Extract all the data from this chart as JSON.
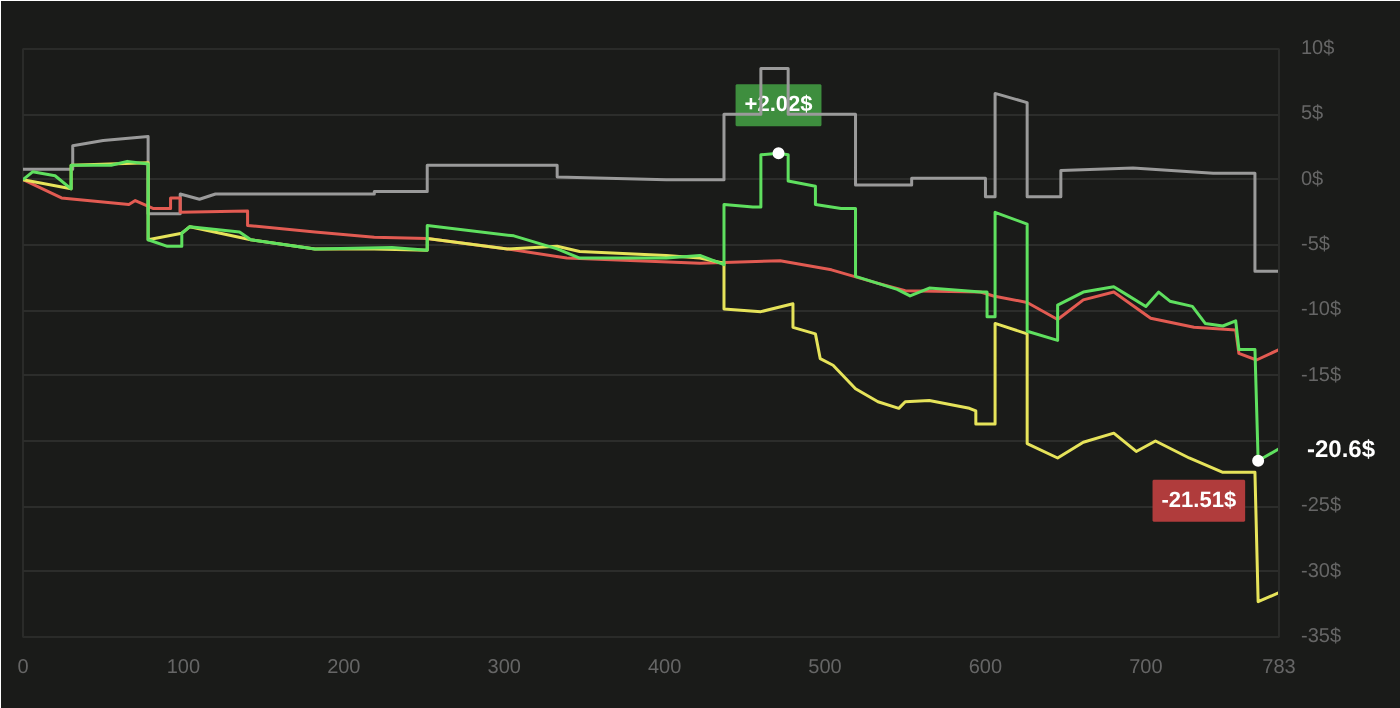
{
  "chart_data": {
    "type": "line",
    "xlim": [
      0,
      783
    ],
    "ylim": [
      -35,
      10
    ],
    "xticks": [
      0,
      100,
      200,
      300,
      400,
      500,
      600,
      700,
      783
    ],
    "yticks": [
      {
        "value": 10,
        "label": "10$"
      },
      {
        "value": 5,
        "label": "5$"
      },
      {
        "value": 0,
        "label": "0$"
      },
      {
        "value": -5,
        "label": "-5$"
      },
      {
        "value": -10,
        "label": "-10$"
      },
      {
        "value": -15,
        "label": "-15$"
      },
      {
        "value": -20,
        "label": null
      },
      {
        "value": -25,
        "label": "-25$"
      },
      {
        "value": -30,
        "label": "-30$"
      },
      {
        "value": -35,
        "label": "-35$"
      }
    ],
    "grid": "y",
    "annotations": [
      {
        "text": "+2.02$",
        "x": 471,
        "y": 2.02
      },
      {
        "text": "-21.51$",
        "x": 770,
        "y": -21.51
      },
      {
        "text": "-20.6$",
        "x": 783,
        "y": -20.6
      }
    ],
    "series": [
      {
        "color": "#9a9a9a",
        "x": [
          0,
          31,
          31,
          50,
          78,
          78,
          98,
          98,
          110,
          120,
          219,
          219,
          252,
          252,
          333,
          333,
          401,
          437,
          437,
          460,
          460,
          477,
          477,
          519,
          519,
          554,
          554,
          600,
          600,
          606,
          606,
          626,
          626,
          647,
          647,
          692,
          742,
          768,
          768,
          783
        ],
        "values": [
          0.8,
          0.8,
          2.6,
          3,
          3.3,
          -2.6,
          -2.6,
          -1.1,
          -1.5,
          -1.1,
          -1.1,
          -0.9,
          -0.9,
          1.1,
          1.1,
          0.2,
          0,
          0,
          5,
          5,
          8.5,
          8.5,
          5,
          5,
          -0.4,
          -0.4,
          0.1,
          0.1,
          -1.3,
          -1.3,
          6.6,
          5.9,
          -1.3,
          -1.3,
          0.7,
          0.9,
          0.5,
          0.5,
          -7,
          -7
        ]
      },
      {
        "color": "#e25b52",
        "x": [
          0,
          24,
          66,
          70,
          81,
          92,
          92,
          98,
          98,
          140,
          140,
          182,
          219,
          252,
          302,
          339,
          422,
          472,
          504,
          532,
          550,
          597,
          605,
          626,
          645,
          661,
          680,
          703,
          730,
          756,
          758,
          769,
          783
        ],
        "values": [
          0,
          -1.4,
          -1.9,
          -1.6,
          -2.2,
          -2.2,
          -1.4,
          -1.4,
          -2.5,
          -2.4,
          -3.5,
          -4,
          -4.4,
          -4.5,
          -5.3,
          -6,
          -6.4,
          -6.2,
          -6.9,
          -7.9,
          -8.5,
          -8.6,
          -8.9,
          -9.4,
          -10.7,
          -9.2,
          -8.6,
          -10.6,
          -11.3,
          -11.5,
          -13.3,
          -13.8,
          -13
        ]
      },
      {
        "color": "#e6e35a",
        "x": [
          0,
          30,
          30,
          78,
          78,
          99,
          104,
          142,
          182,
          219,
          252,
          252,
          302,
          333,
          347,
          401,
          422,
          437,
          437,
          460,
          480,
          480,
          494,
          497,
          505,
          519,
          533,
          546,
          550,
          565,
          590,
          594,
          594,
          606,
          606,
          626,
          626,
          645,
          661,
          680,
          694,
          706,
          727,
          748,
          768,
          770,
          783
        ],
        "values": [
          0,
          -0.7,
          1.1,
          1.3,
          -4.6,
          -4.1,
          -3.6,
          -4.6,
          -5.3,
          -5.3,
          -5.4,
          -4.5,
          -5.3,
          -5.1,
          -5.5,
          -5.8,
          -6,
          -6.4,
          -9.9,
          -10.1,
          -9.5,
          -11.3,
          -11.8,
          -13.7,
          -14.2,
          -16,
          -17,
          -17.5,
          -17,
          -16.9,
          -17.5,
          -17.7,
          -18.7,
          -18.7,
          -11,
          -11.8,
          -20.2,
          -21.3,
          -20.1,
          -19.4,
          -20.8,
          -20,
          -21.3,
          -22.4,
          -22.4,
          -32.3,
          -31.6
        ]
      },
      {
        "color": "#5fe05f",
        "x": [
          0,
          6,
          20,
          30,
          30,
          55,
          65,
          78,
          78,
          90,
          99,
          99,
          104,
          135,
          142,
          182,
          230,
          252,
          252,
          306,
          333,
          347,
          401,
          422,
          437,
          437,
          455,
          460,
          460,
          471,
          477,
          477,
          494,
          494,
          510,
          519,
          519,
          545,
          553,
          565,
          597,
          601,
          601,
          606,
          606,
          626,
          626,
          645,
          645,
          661,
          680,
          688,
          700,
          708,
          715,
          729,
          737,
          748,
          756,
          758,
          768,
          770,
          783
        ],
        "values": [
          0,
          0.6,
          0.3,
          -0.7,
          1.1,
          1.1,
          1.4,
          1.2,
          -4.6,
          -5.1,
          -5.1,
          -4.1,
          -3.6,
          -4,
          -4.6,
          -5.3,
          -5.2,
          -5.4,
          -3.5,
          -4.3,
          -5.3,
          -6,
          -6,
          -5.8,
          -6.5,
          -1.9,
          -2.1,
          -2.1,
          1.9,
          2.02,
          1.9,
          -0.1,
          -0.5,
          -1.9,
          -2.2,
          -2.2,
          -7.4,
          -8.4,
          -8.9,
          -8.3,
          -8.6,
          -8.6,
          -10.5,
          -10.5,
          -2.5,
          -3.4,
          -11.6,
          -12.3,
          -9.6,
          -8.6,
          -8.2,
          -8.8,
          -9.7,
          -8.6,
          -9.3,
          -9.7,
          -11,
          -11.2,
          -10.8,
          -13,
          -13,
          -21.51,
          -20.6
        ]
      }
    ]
  }
}
